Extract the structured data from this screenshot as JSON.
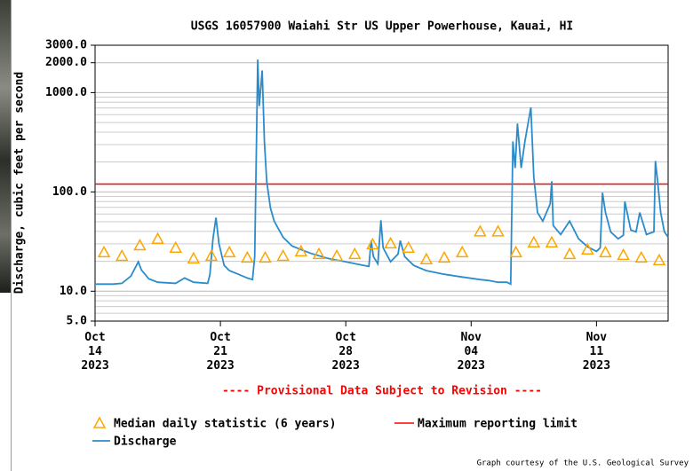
{
  "chart_data": {
    "type": "line",
    "title": "USGS 16057900 Waiahi Str US Upper Powerhouse, Kauai, HI",
    "ylabel": "Discharge, cubic feet per second",
    "annotation": "---- Provisional Data Subject to Revision ----",
    "credit": "Graph courtesy of the U.S. Geological Survey",
    "log_y": true,
    "grid": true,
    "ylim": [
      5,
      3000
    ],
    "yticks": [
      {
        "value": 5,
        "label": "5.0"
      },
      {
        "value": 10,
        "label": "10.0"
      },
      {
        "value": 100,
        "label": "100.0"
      },
      {
        "value": 1000,
        "label": "1000.0"
      },
      {
        "value": 2000,
        "label": "2000.0"
      },
      {
        "value": 3000,
        "label": "3000.0"
      }
    ],
    "minor_yticks": [
      6,
      7,
      8,
      9,
      20,
      30,
      40,
      50,
      60,
      70,
      80,
      90,
      200,
      300,
      400,
      500,
      600,
      700,
      800,
      900
    ],
    "xlim": [
      "2023-10-14T00:00",
      "2023-11-15T00:00"
    ],
    "xticks": [
      {
        "value": "2023-10-14T00:00",
        "label": "Oct\n14\n2023"
      },
      {
        "value": "2023-10-21T00:00",
        "label": "Oct\n21\n2023"
      },
      {
        "value": "2023-10-28T00:00",
        "label": "Oct\n28\n2023"
      },
      {
        "value": "2023-11-04T00:00",
        "label": "Nov\n04\n2023"
      },
      {
        "value": "2023-11-11T00:00",
        "label": "Nov\n11\n2023"
      }
    ],
    "median": {
      "name": "Median daily statistic (6 years)",
      "color": "#ffa500",
      "x": [
        "2023-10-14",
        "2023-10-15",
        "2023-10-16",
        "2023-10-17",
        "2023-10-18",
        "2023-10-19",
        "2023-10-20",
        "2023-10-21",
        "2023-10-22",
        "2023-10-23",
        "2023-10-24",
        "2023-10-25",
        "2023-10-26",
        "2023-10-27",
        "2023-10-28",
        "2023-10-29",
        "2023-10-30",
        "2023-10-31",
        "2023-11-01",
        "2023-11-02",
        "2023-11-03",
        "2023-11-04",
        "2023-11-05",
        "2023-11-06",
        "2023-11-07",
        "2023-11-08",
        "2023-11-09",
        "2023-11-10",
        "2023-11-11",
        "2023-11-12",
        "2023-11-13",
        "2023-11-14"
      ],
      "values": [
        24.7,
        22.7,
        29,
        33.7,
        27.4,
        21.4,
        22.7,
        24.7,
        21.8,
        21.8,
        22.7,
        25.2,
        23.7,
        22.7,
        23.7,
        29.7,
        30.3,
        27.4,
        21,
        21.8,
        24.7,
        40,
        40,
        24.7,
        31,
        31,
        23.7,
        26.3,
        24.7,
        23.2,
        21.8,
        20.5
      ]
    },
    "reference_line": {
      "name": "Maximum reporting limit",
      "color": "#ff0000",
      "value": 120
    },
    "series": [
      {
        "name": "Discharge",
        "color": "#2b8ccc",
        "x": [
          "2023-10-14T00:00",
          "2023-10-15T00:00",
          "2023-10-15T12:00",
          "2023-10-16T00:00",
          "2023-10-16T10:00",
          "2023-10-16T14:00",
          "2023-10-17T00:00",
          "2023-10-17T12:00",
          "2023-10-18T12:00",
          "2023-10-19T00:00",
          "2023-10-19T12:00",
          "2023-10-20T07:00",
          "2023-10-20T10:00",
          "2023-10-20T14:00",
          "2023-10-20T18:00",
          "2023-10-20T22:00",
          "2023-10-21T05:00",
          "2023-10-21T12:00",
          "2023-10-22T00:00",
          "2023-10-22T12:00",
          "2023-10-22T19:00",
          "2023-10-22T22:00",
          "2023-10-23T02:00",
          "2023-10-23T04:00",
          "2023-10-23T08:00",
          "2023-10-23T11:00",
          "2023-10-23T14:00",
          "2023-10-23T19:00",
          "2023-10-24T00:00",
          "2023-10-24T12:00",
          "2023-10-25T00:00",
          "2023-10-26T00:00",
          "2023-10-27T00:00",
          "2023-10-28T00:00",
          "2023-10-29T00:00",
          "2023-10-29T07:00",
          "2023-10-29T10:00",
          "2023-10-29T13:00",
          "2023-10-29T19:00",
          "2023-10-29T23:00",
          "2023-10-30T02:00",
          "2023-10-30T12:00",
          "2023-10-30T22:00",
          "2023-10-31T01:00",
          "2023-10-31T07:00",
          "2023-10-31T19:00",
          "2023-11-01T12:00",
          "2023-11-02T12:00",
          "2023-11-03T12:00",
          "2023-11-04T12:00",
          "2023-11-05T00:00",
          "2023-11-05T12:00",
          "2023-11-06T00:00",
          "2023-11-06T05:00",
          "2023-11-06T08:00",
          "2023-11-06T11:00",
          "2023-11-06T14:00",
          "2023-11-06T19:00",
          "2023-11-07T00:00",
          "2023-11-07T08:00",
          "2023-11-07T12:00",
          "2023-11-07T17:00",
          "2023-11-08T00:00",
          "2023-11-08T10:00",
          "2023-11-08T12:00",
          "2023-11-08T14:00",
          "2023-11-09T00:00",
          "2023-11-09T12:00",
          "2023-11-10T00:00",
          "2023-11-10T12:00",
          "2023-11-11T00:00",
          "2023-11-11T05:00",
          "2023-11-11T08:00",
          "2023-11-11T12:00",
          "2023-11-11T19:00",
          "2023-11-12T05:00",
          "2023-11-12T12:00",
          "2023-11-12T14:00",
          "2023-11-12T22:00",
          "2023-11-13T05:00",
          "2023-11-13T10:00",
          "2023-11-13T19:00",
          "2023-11-14T05:00",
          "2023-11-14T07:00",
          "2023-11-14T10:00",
          "2023-11-14T14:00",
          "2023-11-14T19:00",
          "2023-11-15T00:00"
        ],
        "values": [
          11.8,
          11.8,
          12.0,
          14.2,
          19.8,
          16.4,
          13.3,
          12.3,
          12.0,
          13.6,
          12.3,
          12.0,
          14.8,
          33.7,
          55,
          30.3,
          18.2,
          16.1,
          14.8,
          13.6,
          13.1,
          22.3,
          2150,
          730,
          1670,
          323,
          128,
          69,
          50.8,
          35,
          28.5,
          24.2,
          21.4,
          19.8,
          18.2,
          17.8,
          32.3,
          22.3,
          18.9,
          51.8,
          27.4,
          19.8,
          23.7,
          32.3,
          22.3,
          18.2,
          16.1,
          14.8,
          13.9,
          13.1,
          12.8,
          12.3,
          12.3,
          11.8,
          323,
          174,
          488,
          174,
          323,
          708,
          142,
          62,
          50.8,
          76,
          128,
          45.8,
          37.2,
          50.8,
          33.7,
          28,
          25.2,
          27.4,
          98,
          62,
          39.6,
          33.7,
          36.6,
          80,
          41.3,
          39.6,
          62,
          37.2,
          39.6,
          205,
          128,
          62,
          39.6,
          35
        ]
      }
    ]
  }
}
